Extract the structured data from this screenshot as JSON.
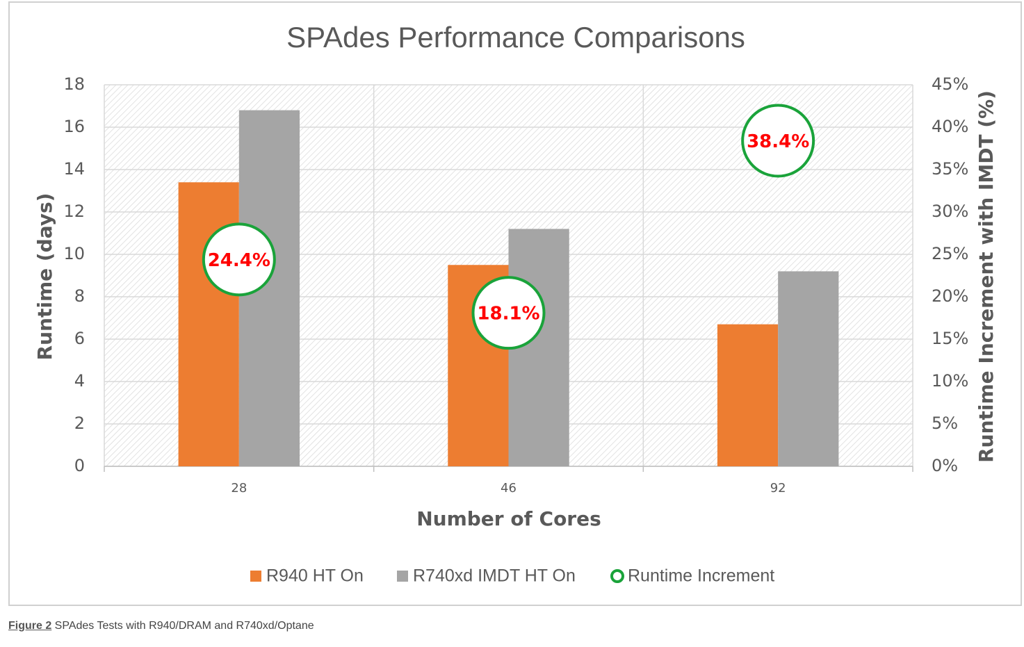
{
  "chart_data": {
    "type": "bar",
    "title": "SPAdes Performance Comparisons",
    "x_label": "Number of Cores",
    "y_label": "Runtime (days)",
    "y2_label": "Runtime Increment with IMDT (%)",
    "categories": [
      "28",
      "46",
      "92"
    ],
    "series": [
      {
        "name": "R940 HT On",
        "color": "#ed7d31",
        "values": [
          13.4,
          9.5,
          6.7
        ]
      },
      {
        "name": "R740xd IMDT HT On",
        "color": "#a5a5a5",
        "values": [
          16.8,
          11.2,
          9.2
        ]
      },
      {
        "name": "Runtime Increment",
        "type": "scatter",
        "color": "#1aa33a",
        "label_color": "#ff0000",
        "axis": "y2",
        "values": [
          24.4,
          18.1,
          38.4
        ],
        "value_labels": [
          "24.4%",
          "18.1%",
          "38.4%"
        ]
      }
    ],
    "ylim": [
      0,
      18
    ],
    "yticks": [
      0,
      2,
      4,
      6,
      8,
      10,
      12,
      14,
      16,
      18
    ],
    "y2lim": [
      0,
      45
    ],
    "y2ticks": [
      {
        "value": 0,
        "label": "0%"
      },
      {
        "value": 5,
        "label": "5%"
      },
      {
        "value": 10,
        "label": "10%"
      },
      {
        "value": 15,
        "label": "15%"
      },
      {
        "value": 20,
        "label": "20%"
      },
      {
        "value": 25,
        "label": "25%"
      },
      {
        "value": 30,
        "label": "30%"
      },
      {
        "value": 35,
        "label": "35%"
      },
      {
        "value": 40,
        "label": "40%"
      },
      {
        "value": 45,
        "label": "45%"
      }
    ],
    "grid": true,
    "legend": "bottom"
  },
  "caption": {
    "label": "Figure 2",
    "text": " SPAdes Tests with R940/DRAM and R740xd/Optane"
  }
}
